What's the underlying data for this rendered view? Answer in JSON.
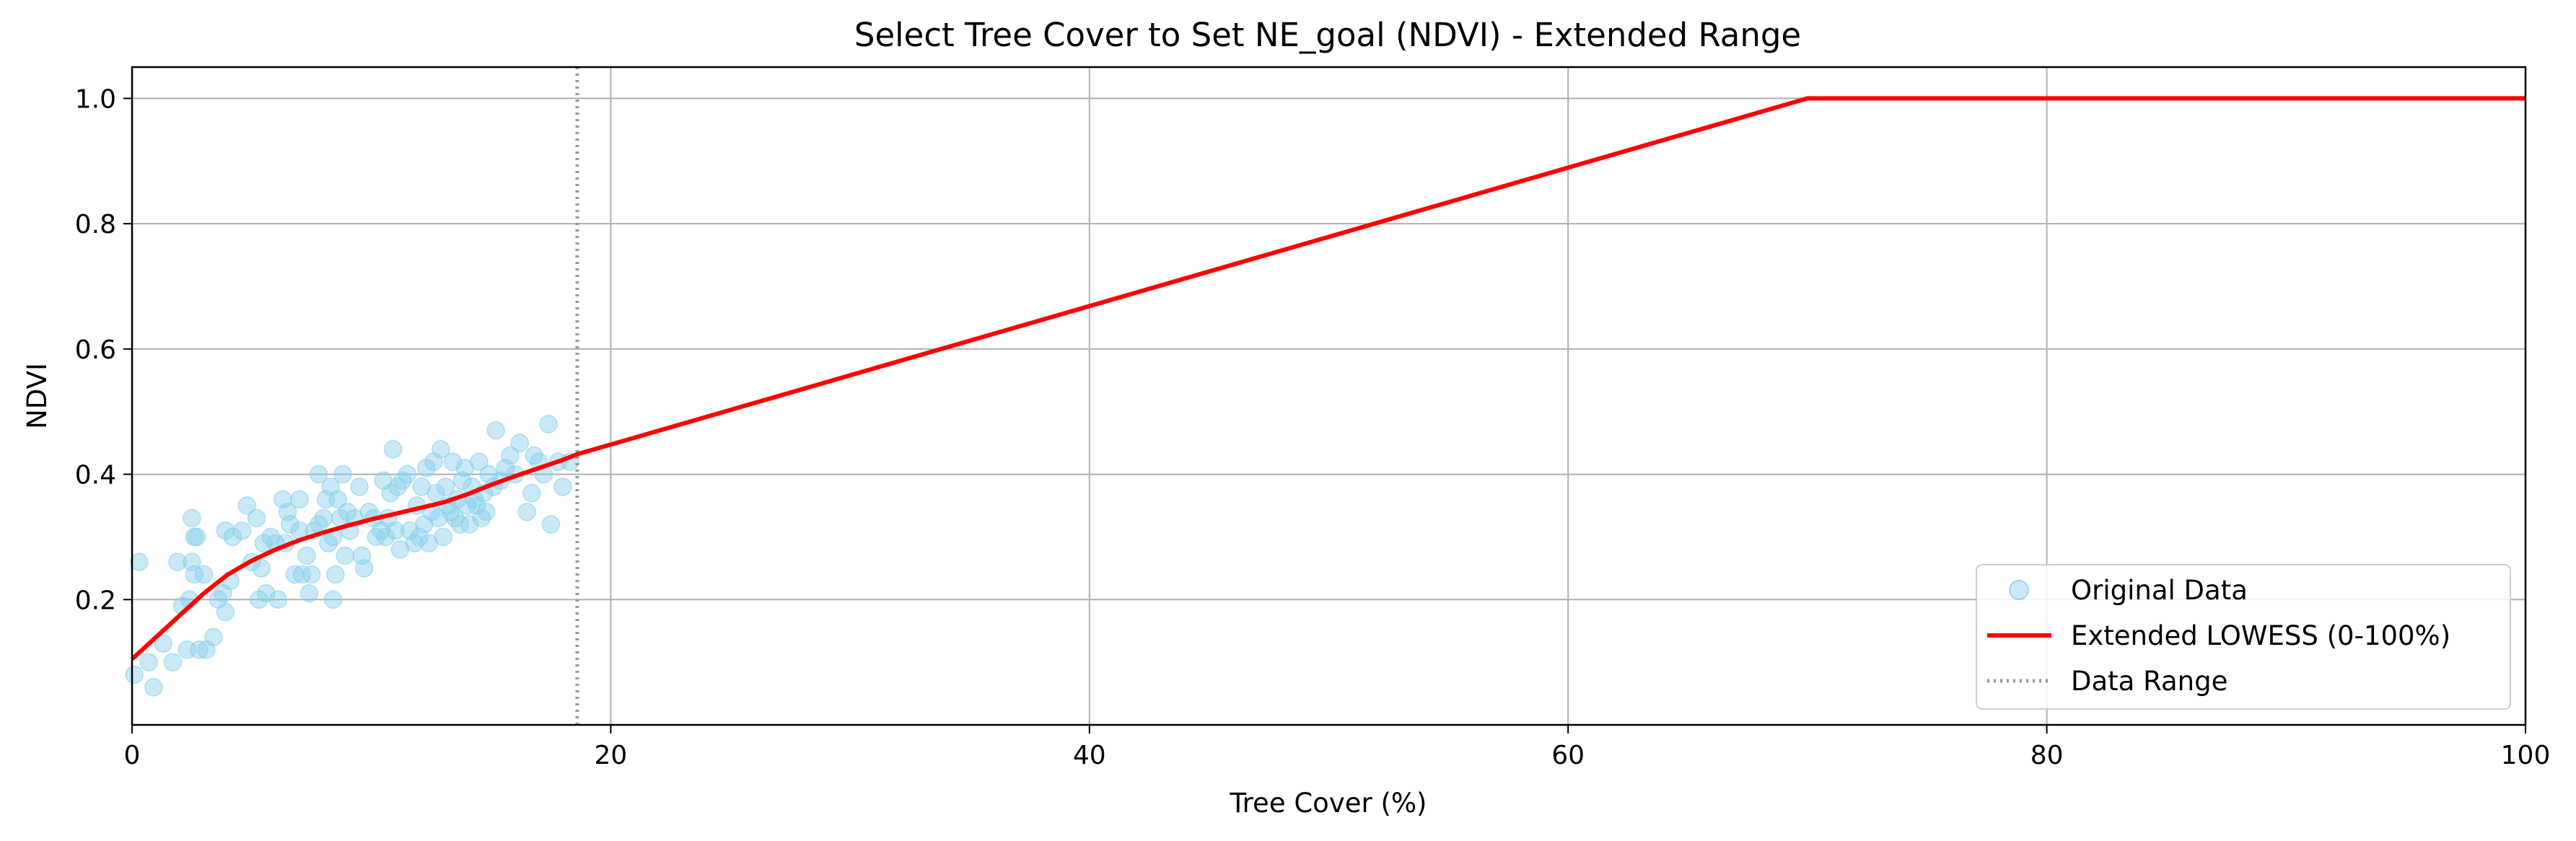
{
  "chart_data": {
    "type": "scatter",
    "title": "Select Tree Cover to Set NE_goal (NDVI) - Extended Range",
    "xlabel": "Tree Cover (%)",
    "ylabel": "NDVI",
    "xlim": [
      0,
      100
    ],
    "ylim": [
      0.0,
      1.05
    ],
    "xticks": [
      0,
      20,
      40,
      60,
      80,
      100
    ],
    "xtick_labels": [
      "0",
      "20",
      "40",
      "60",
      "80",
      "100"
    ],
    "yticks": [
      0.2,
      0.4,
      0.6,
      0.8,
      1.0
    ],
    "ytick_labels": [
      "0.2",
      "0.4",
      "0.6",
      "0.8",
      "1.0"
    ],
    "grid": true,
    "legend_position": "lower-right",
    "series": [
      {
        "name": "Original Data",
        "kind": "scatter",
        "color": "#87ceeb",
        "points": [
          [
            0.1,
            0.08
          ],
          [
            0.3,
            0.26
          ],
          [
            0.7,
            0.1
          ],
          [
            0.9,
            0.06
          ],
          [
            1.3,
            0.13
          ],
          [
            1.7,
            0.1
          ],
          [
            1.9,
            0.26
          ],
          [
            2.1,
            0.19
          ],
          [
            2.3,
            0.12
          ],
          [
            2.4,
            0.2
          ],
          [
            2.5,
            0.33
          ],
          [
            2.5,
            0.26
          ],
          [
            2.6,
            0.3
          ],
          [
            2.6,
            0.24
          ],
          [
            2.7,
            0.3
          ],
          [
            2.8,
            0.12
          ],
          [
            3.0,
            0.24
          ],
          [
            3.1,
            0.12
          ],
          [
            3.4,
            0.14
          ],
          [
            3.6,
            0.2
          ],
          [
            3.8,
            0.21
          ],
          [
            3.9,
            0.31
          ],
          [
            3.9,
            0.18
          ],
          [
            4.1,
            0.23
          ],
          [
            4.2,
            0.3
          ],
          [
            4.6,
            0.31
          ],
          [
            4.8,
            0.35
          ],
          [
            5.0,
            0.26
          ],
          [
            5.2,
            0.33
          ],
          [
            5.3,
            0.2
          ],
          [
            5.4,
            0.25
          ],
          [
            5.5,
            0.29
          ],
          [
            5.6,
            0.21
          ],
          [
            5.8,
            0.3
          ],
          [
            6.0,
            0.29
          ],
          [
            6.1,
            0.2
          ],
          [
            6.3,
            0.36
          ],
          [
            6.4,
            0.29
          ],
          [
            6.5,
            0.34
          ],
          [
            6.6,
            0.32
          ],
          [
            6.8,
            0.24
          ],
          [
            7.0,
            0.36
          ],
          [
            7.0,
            0.31
          ],
          [
            7.1,
            0.24
          ],
          [
            7.3,
            0.27
          ],
          [
            7.4,
            0.21
          ],
          [
            7.5,
            0.24
          ],
          [
            7.6,
            0.31
          ],
          [
            7.8,
            0.32
          ],
          [
            7.8,
            0.4
          ],
          [
            8.0,
            0.33
          ],
          [
            8.1,
            0.36
          ],
          [
            8.2,
            0.29
          ],
          [
            8.3,
            0.38
          ],
          [
            8.4,
            0.2
          ],
          [
            8.4,
            0.3
          ],
          [
            8.5,
            0.24
          ],
          [
            8.6,
            0.36
          ],
          [
            8.7,
            0.33
          ],
          [
            8.8,
            0.4
          ],
          [
            8.9,
            0.27
          ],
          [
            9.0,
            0.34
          ],
          [
            9.1,
            0.31
          ],
          [
            9.3,
            0.33
          ],
          [
            9.5,
            0.38
          ],
          [
            9.6,
            0.27
          ],
          [
            9.7,
            0.25
          ],
          [
            9.9,
            0.34
          ],
          [
            10.1,
            0.33
          ],
          [
            10.2,
            0.3
          ],
          [
            10.4,
            0.31
          ],
          [
            10.5,
            0.39
          ],
          [
            10.6,
            0.3
          ],
          [
            10.7,
            0.33
          ],
          [
            10.8,
            0.37
          ],
          [
            10.9,
            0.44
          ],
          [
            11.0,
            0.31
          ],
          [
            11.1,
            0.38
          ],
          [
            11.2,
            0.28
          ],
          [
            11.3,
            0.39
          ],
          [
            11.5,
            0.4
          ],
          [
            11.6,
            0.31
          ],
          [
            11.8,
            0.29
          ],
          [
            11.9,
            0.35
          ],
          [
            12.0,
            0.3
          ],
          [
            12.1,
            0.38
          ],
          [
            12.2,
            0.32
          ],
          [
            12.3,
            0.41
          ],
          [
            12.4,
            0.29
          ],
          [
            12.5,
            0.34
          ],
          [
            12.6,
            0.42
          ],
          [
            12.7,
            0.37
          ],
          [
            12.8,
            0.33
          ],
          [
            12.9,
            0.44
          ],
          [
            13.0,
            0.3
          ],
          [
            13.1,
            0.38
          ],
          [
            13.2,
            0.35
          ],
          [
            13.3,
            0.34
          ],
          [
            13.4,
            0.42
          ],
          [
            13.5,
            0.33
          ],
          [
            13.6,
            0.36
          ],
          [
            13.7,
            0.32
          ],
          [
            13.8,
            0.39
          ],
          [
            13.9,
            0.41
          ],
          [
            14.0,
            0.35
          ],
          [
            14.1,
            0.32
          ],
          [
            14.2,
            0.38
          ],
          [
            14.3,
            0.36
          ],
          [
            14.4,
            0.35
          ],
          [
            14.5,
            0.42
          ],
          [
            14.6,
            0.33
          ],
          [
            14.7,
            0.37
          ],
          [
            14.8,
            0.34
          ],
          [
            14.9,
            0.4
          ],
          [
            15.1,
            0.38
          ],
          [
            15.2,
            0.47
          ],
          [
            15.4,
            0.39
          ],
          [
            15.6,
            0.41
          ],
          [
            15.8,
            0.43
          ],
          [
            16.0,
            0.4
          ],
          [
            16.2,
            0.45
          ],
          [
            16.5,
            0.34
          ],
          [
            16.7,
            0.37
          ],
          [
            16.8,
            0.43
          ],
          [
            17.0,
            0.42
          ],
          [
            17.2,
            0.4
          ],
          [
            17.4,
            0.48
          ],
          [
            17.5,
            0.32
          ],
          [
            17.8,
            0.42
          ],
          [
            18.0,
            0.38
          ],
          [
            18.3,
            0.42
          ]
        ]
      },
      {
        "name": "Extended LOWESS (0-100%)",
        "kind": "line",
        "color": "#ff0000",
        "points": [
          [
            0,
            0.105
          ],
          [
            1,
            0.14
          ],
          [
            2,
            0.175
          ],
          [
            3,
            0.21
          ],
          [
            4,
            0.24
          ],
          [
            5,
            0.262
          ],
          [
            6,
            0.28
          ],
          [
            7,
            0.295
          ],
          [
            8,
            0.307
          ],
          [
            9,
            0.318
          ],
          [
            10,
            0.328
          ],
          [
            11,
            0.337
          ],
          [
            12,
            0.346
          ],
          [
            13,
            0.355
          ],
          [
            14,
            0.368
          ],
          [
            15,
            0.383
          ],
          [
            16,
            0.397
          ],
          [
            17,
            0.41
          ],
          [
            18,
            0.423
          ],
          [
            18.6,
            0.432
          ],
          [
            70,
            1.0
          ],
          [
            100,
            1.0
          ]
        ]
      },
      {
        "name": "Data Range",
        "kind": "vline",
        "color": "#999999",
        "x": 18.6
      }
    ]
  }
}
